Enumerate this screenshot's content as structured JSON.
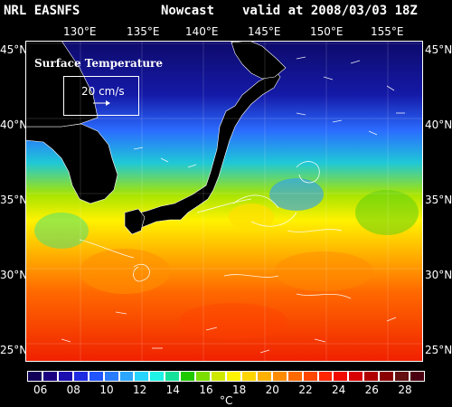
{
  "header": {
    "model": "NRL EASNFS",
    "product": "Nowcast",
    "valid": "valid at 2008/03/03 18Z"
  },
  "longitudes": [
    "130°E",
    "135°E",
    "140°E",
    "145°E",
    "150°E",
    "155°E"
  ],
  "latitudes": [
    "45°N",
    "40°N",
    "35°N",
    "30°N",
    "25°N"
  ],
  "legend": {
    "title": "Surface Temperature",
    "vector_scale": "20 cm/s"
  },
  "colorbar": {
    "labels": [
      "06",
      "08",
      "10",
      "12",
      "14",
      "16",
      "18",
      "20",
      "22",
      "24",
      "26",
      "28"
    ],
    "unit": "°C",
    "colors": [
      "#120058",
      "#1a0080",
      "#1b0fb0",
      "#1f2be0",
      "#2255ff",
      "#2a7cff",
      "#2ca6ff",
      "#27d3ff",
      "#1ff2e6",
      "#15e29a",
      "#20c800",
      "#7bdd00",
      "#cfe800",
      "#fff400",
      "#ffd500",
      "#ffb000",
      "#ff8c00",
      "#ff6a00",
      "#ff4700",
      "#ff2600",
      "#f00a00",
      "#d80000",
      "#b00000",
      "#8a0000",
      "#641010",
      "#4a0010"
    ]
  }
}
